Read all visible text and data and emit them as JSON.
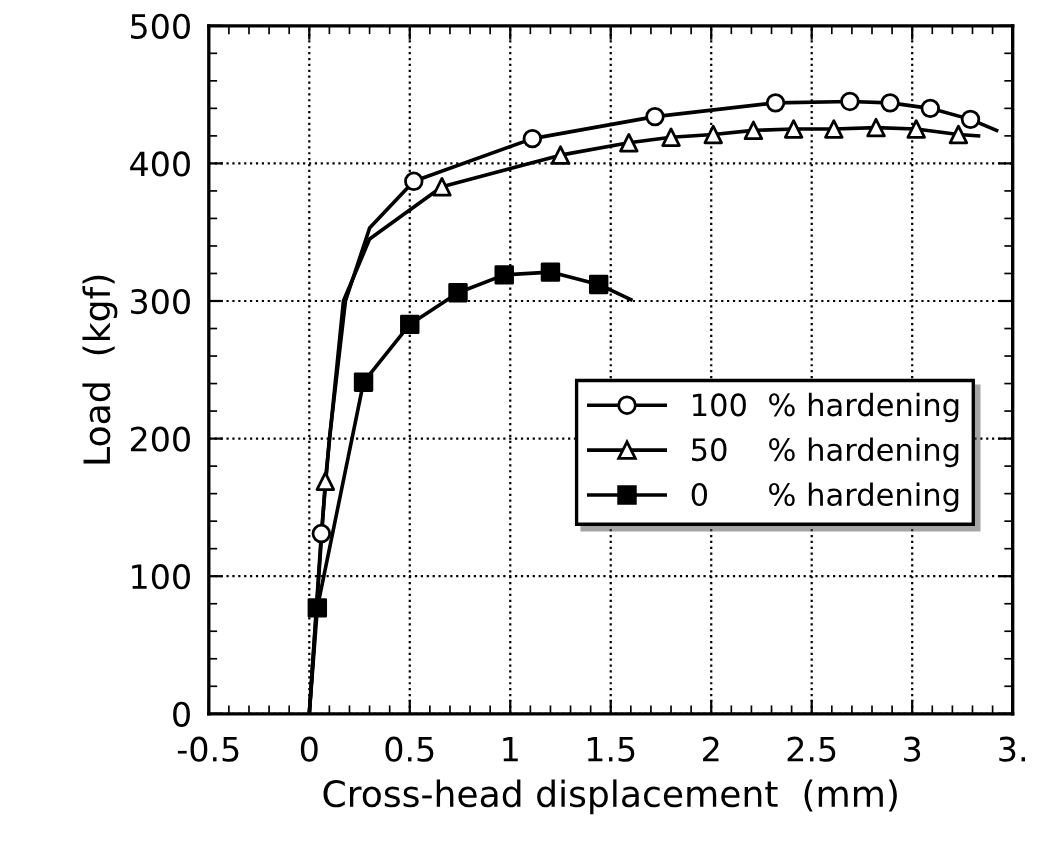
{
  "chart_data": {
    "type": "line",
    "xlabel": "Cross-head displacement  (mm)",
    "ylabel": "Load  (kgf)",
    "xlim": [
      -0.5,
      3.5
    ],
    "ylim": [
      0,
      500
    ],
    "xticks": [
      -0.5,
      0,
      0.5,
      1,
      1.5,
      2,
      2.5,
      3,
      {
        "value": 3.5,
        "label": "3."
      }
    ],
    "yticks": [
      0,
      100,
      200,
      300,
      400,
      500
    ],
    "grid": true,
    "legend": "right",
    "series": [
      {
        "color": "#000000",
        "x": [
          0,
          0.06,
          0.1,
          0.18,
          0.3,
          0.52,
          1.11,
          1.72,
          2.32,
          2.69,
          2.89,
          3.09,
          3.29,
          3.42
        ],
        "values": [
          0,
          131,
          200,
          300,
          353,
          387,
          418,
          434,
          444,
          445,
          444,
          440,
          432,
          424
        ]
      },
      {
        "color": "#000000",
        "x": [
          0,
          0.08,
          0.17,
          0.3,
          0.66,
          1.25,
          1.59,
          1.8,
          2.01,
          2.21,
          2.41,
          2.61,
          2.82,
          3.02,
          3.23,
          3.33
        ],
        "values": [
          0,
          169,
          300,
          345,
          383,
          406,
          415,
          419,
          421,
          424,
          425,
          425,
          426,
          425,
          421,
          420
        ]
      },
      {
        "color": "#000000",
        "x": [
          0,
          0.04,
          0.27,
          0.5,
          0.74,
          0.97,
          1.2,
          1.44,
          1.6
        ],
        "values": [
          0,
          77,
          241,
          283,
          306,
          319,
          321,
          312,
          301
        ]
      },
      {
        "type": "scatter",
        "name": "100  % hardening",
        "marker": "circle",
        "color": "#000000",
        "x": [
          0.06,
          0.52,
          1.11,
          1.72,
          2.32,
          2.69,
          2.89,
          3.09,
          3.29
        ],
        "values": [
          131,
          387,
          418,
          434,
          444,
          445,
          444,
          440,
          432
        ]
      },
      {
        "type": "scatter",
        "name": "50    % hardening",
        "marker": "triangle",
        "color": "#000000",
        "x": [
          0.08,
          0.66,
          1.25,
          1.59,
          1.8,
          2.01,
          2.21,
          2.41,
          2.61,
          2.82,
          3.02,
          3.23
        ],
        "values": [
          169,
          383,
          406,
          415,
          419,
          421,
          424,
          425,
          425,
          426,
          425,
          421
        ]
      },
      {
        "type": "scatter",
        "name": "0      % hardening",
        "marker": "square",
        "color": "#000000",
        "x": [
          0.04,
          0.27,
          0.5,
          0.74,
          0.97,
          1.2,
          1.44
        ],
        "values": [
          77,
          241,
          283,
          306,
          319,
          321,
          312
        ]
      }
    ]
  }
}
